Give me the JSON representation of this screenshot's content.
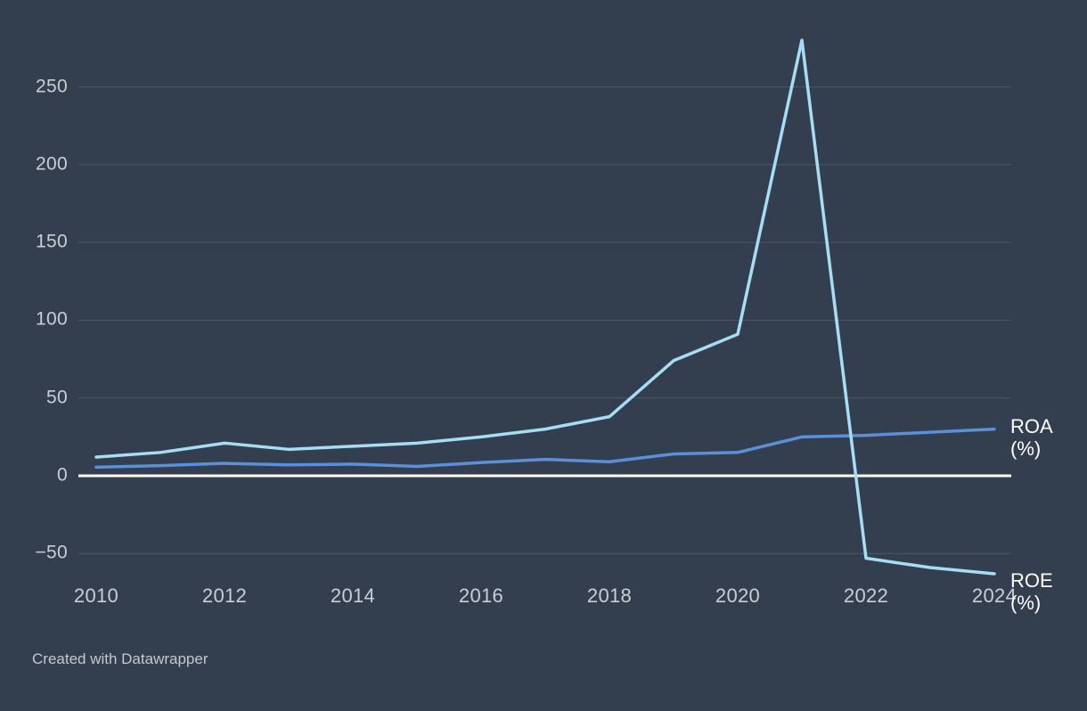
{
  "chart_data": {
    "type": "line",
    "title": "",
    "xlabel": "",
    "ylabel": "",
    "x": [
      2010,
      2011,
      2012,
      2013,
      2014,
      2015,
      2016,
      2017,
      2018,
      2019,
      2020,
      2021,
      2022,
      2023,
      2024
    ],
    "series": [
      {
        "id": "roa",
        "name": "ROA (%)",
        "label_lines": [
          "ROA",
          "(%)"
        ],
        "color": "#5b90d8",
        "values": [
          5.5,
          6.5,
          8,
          7,
          7.5,
          6,
          8.5,
          10.5,
          9,
          14,
          15,
          25,
          26,
          28,
          30
        ]
      },
      {
        "id": "roe",
        "name": "ROE (%)",
        "label_lines": [
          "ROE",
          "(%)"
        ],
        "color": "#a5def2",
        "values": [
          12,
          15,
          21,
          17,
          19,
          21,
          25,
          30,
          38,
          74,
          91,
          280,
          -53,
          -59,
          -63
        ]
      }
    ],
    "yticks": [
      {
        "label": "250",
        "value": 250
      },
      {
        "label": "200",
        "value": 200
      },
      {
        "label": "150",
        "value": 150
      },
      {
        "label": "100",
        "value": 100
      },
      {
        "label": "50",
        "value": 50
      },
      {
        "label": "0",
        "value": 0
      },
      {
        "label": "−50",
        "value": -50
      }
    ],
    "xticks": [
      {
        "label": "2010",
        "value": 2010
      },
      {
        "label": "2012",
        "value": 2012
      },
      {
        "label": "2014",
        "value": 2014
      },
      {
        "label": "2016",
        "value": 2016
      },
      {
        "label": "2018",
        "value": 2018
      },
      {
        "label": "2020",
        "value": 2020
      },
      {
        "label": "2022",
        "value": 2022
      },
      {
        "label": "2024",
        "value": 2024
      }
    ],
    "ylim": [
      -75,
      290
    ],
    "grid": "horizontal",
    "zero_line": true,
    "legend_position": "right-of-line-ends",
    "colors": {
      "background": "#333e4f",
      "grid": "#4d5666",
      "zero_line": "#ffffff",
      "tick_text": "#c9ced6",
      "series_label_text": "#ffffff"
    }
  },
  "footer": {
    "attribution": "Created with Datawrapper"
  }
}
